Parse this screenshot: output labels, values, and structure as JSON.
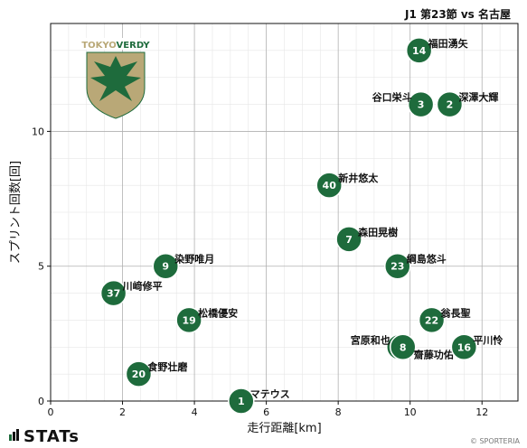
{
  "title": "J1 第23節 vs 名古屋",
  "footer": {
    "brand": "STATs",
    "copyright": "© SPORTERIA"
  },
  "crest": {
    "text": "TOKYOVERDY",
    "colors": {
      "gold": "#b9a877",
      "green": "#1e6b3c"
    }
  },
  "colors": {
    "marker": "#1e6b3c",
    "marker_edge": "#ffffff",
    "major_grid": "#b0b0b0",
    "minor_grid": "#e6e6e6"
  },
  "chart_data": {
    "type": "scatter",
    "xlabel": "走行距離[km]",
    "ylabel": "スプリント回数[回]",
    "xlim": [
      0,
      13
    ],
    "ylim": [
      0,
      14
    ],
    "xticks": [
      0,
      2,
      4,
      6,
      8,
      10,
      12
    ],
    "yticks": [
      0,
      5,
      10
    ],
    "grid": true,
    "points": [
      {
        "number": "14",
        "name": "福田湧矢",
        "x": 10.25,
        "y": 13,
        "label_pos": "right"
      },
      {
        "number": "3",
        "name": "谷口栄斗",
        "x": 10.3,
        "y": 11,
        "label_pos": "left"
      },
      {
        "number": "2",
        "name": "深澤大輝",
        "x": 11.1,
        "y": 11,
        "label_pos": "right"
      },
      {
        "number": "40",
        "name": "新井悠太",
        "x": 7.75,
        "y": 8,
        "label_pos": "right"
      },
      {
        "number": "7",
        "name": "森田晃樹",
        "x": 8.3,
        "y": 6,
        "label_pos": "right"
      },
      {
        "number": "23",
        "name": "綱島悠斗",
        "x": 9.65,
        "y": 5,
        "label_pos": "right"
      },
      {
        "number": "9",
        "name": "染野唯月",
        "x": 3.2,
        "y": 5,
        "label_pos": "right"
      },
      {
        "number": "37",
        "name": "川﨑修平",
        "x": 1.75,
        "y": 4,
        "label_pos": "right"
      },
      {
        "number": "19",
        "name": "松橋優安",
        "x": 3.85,
        "y": 3,
        "label_pos": "right"
      },
      {
        "number": "22",
        "name": "翁長聖",
        "x": 10.6,
        "y": 3,
        "label_pos": "right"
      },
      {
        "number": "6",
        "name": "宮原和也",
        "x": 9.7,
        "y": 2,
        "label_pos": "left"
      },
      {
        "number": "8",
        "name": "齋藤功佑",
        "x": 9.8,
        "y": 2,
        "label_pos": "below-right"
      },
      {
        "number": "16",
        "name": "平川怜",
        "x": 11.5,
        "y": 2,
        "label_pos": "right"
      },
      {
        "number": "20",
        "name": "食野壮磨",
        "x": 2.45,
        "y": 1,
        "label_pos": "right"
      },
      {
        "number": "1",
        "name": "マテウス",
        "x": 5.3,
        "y": 0,
        "label_pos": "right"
      }
    ]
  }
}
